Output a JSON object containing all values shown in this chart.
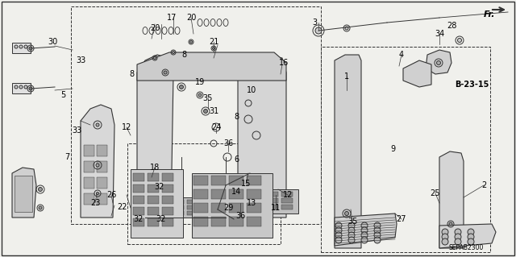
{
  "bg_color": "#f0f0ec",
  "line_color": "#333333",
  "text_color": "#000000",
  "font_size_parts": 7,
  "background": "#f0f0ec",
  "fr_label": "Fr.",
  "ref_label": "B-23-15",
  "part_label": "SEPAB2300",
  "parts": [
    [
      390,
      28,
      "3"
    ],
    [
      560,
      32,
      "28"
    ],
    [
      498,
      68,
      "4"
    ],
    [
      545,
      42,
      "34"
    ],
    [
      430,
      95,
      "1"
    ],
    [
      487,
      185,
      "9"
    ],
    [
      600,
      230,
      "2"
    ],
    [
      540,
      240,
      "25"
    ],
    [
      498,
      272,
      "27"
    ],
    [
      437,
      275,
      "35"
    ],
    [
      65,
      52,
      "30"
    ],
    [
      100,
      75,
      "33"
    ],
    [
      78,
      118,
      "5"
    ],
    [
      95,
      162,
      "33"
    ],
    [
      83,
      195,
      "7"
    ],
    [
      157,
      158,
      "12"
    ],
    [
      163,
      92,
      "8"
    ],
    [
      192,
      35,
      "20"
    ],
    [
      213,
      22,
      "17"
    ],
    [
      237,
      22,
      "20"
    ],
    [
      265,
      52,
      "21"
    ],
    [
      228,
      68,
      "8"
    ],
    [
      248,
      102,
      "19"
    ],
    [
      258,
      122,
      "35"
    ],
    [
      265,
      138,
      "31"
    ],
    [
      268,
      158,
      "24"
    ],
    [
      283,
      178,
      "36"
    ],
    [
      293,
      198,
      "6"
    ],
    [
      293,
      145,
      "8"
    ],
    [
      312,
      112,
      "10"
    ],
    [
      352,
      78,
      "16"
    ],
    [
      305,
      228,
      "15"
    ],
    [
      293,
      238,
      "14"
    ],
    [
      283,
      258,
      "29"
    ],
    [
      298,
      268,
      "36"
    ],
    [
      312,
      252,
      "13"
    ],
    [
      342,
      258,
      "11"
    ],
    [
      192,
      208,
      "18"
    ],
    [
      197,
      232,
      "32"
    ],
    [
      200,
      272,
      "32"
    ],
    [
      138,
      242,
      "26"
    ],
    [
      152,
      257,
      "22"
    ],
    [
      118,
      252,
      "23"
    ],
    [
      172,
      272,
      "32"
    ],
    [
      357,
      242,
      "12"
    ]
  ]
}
